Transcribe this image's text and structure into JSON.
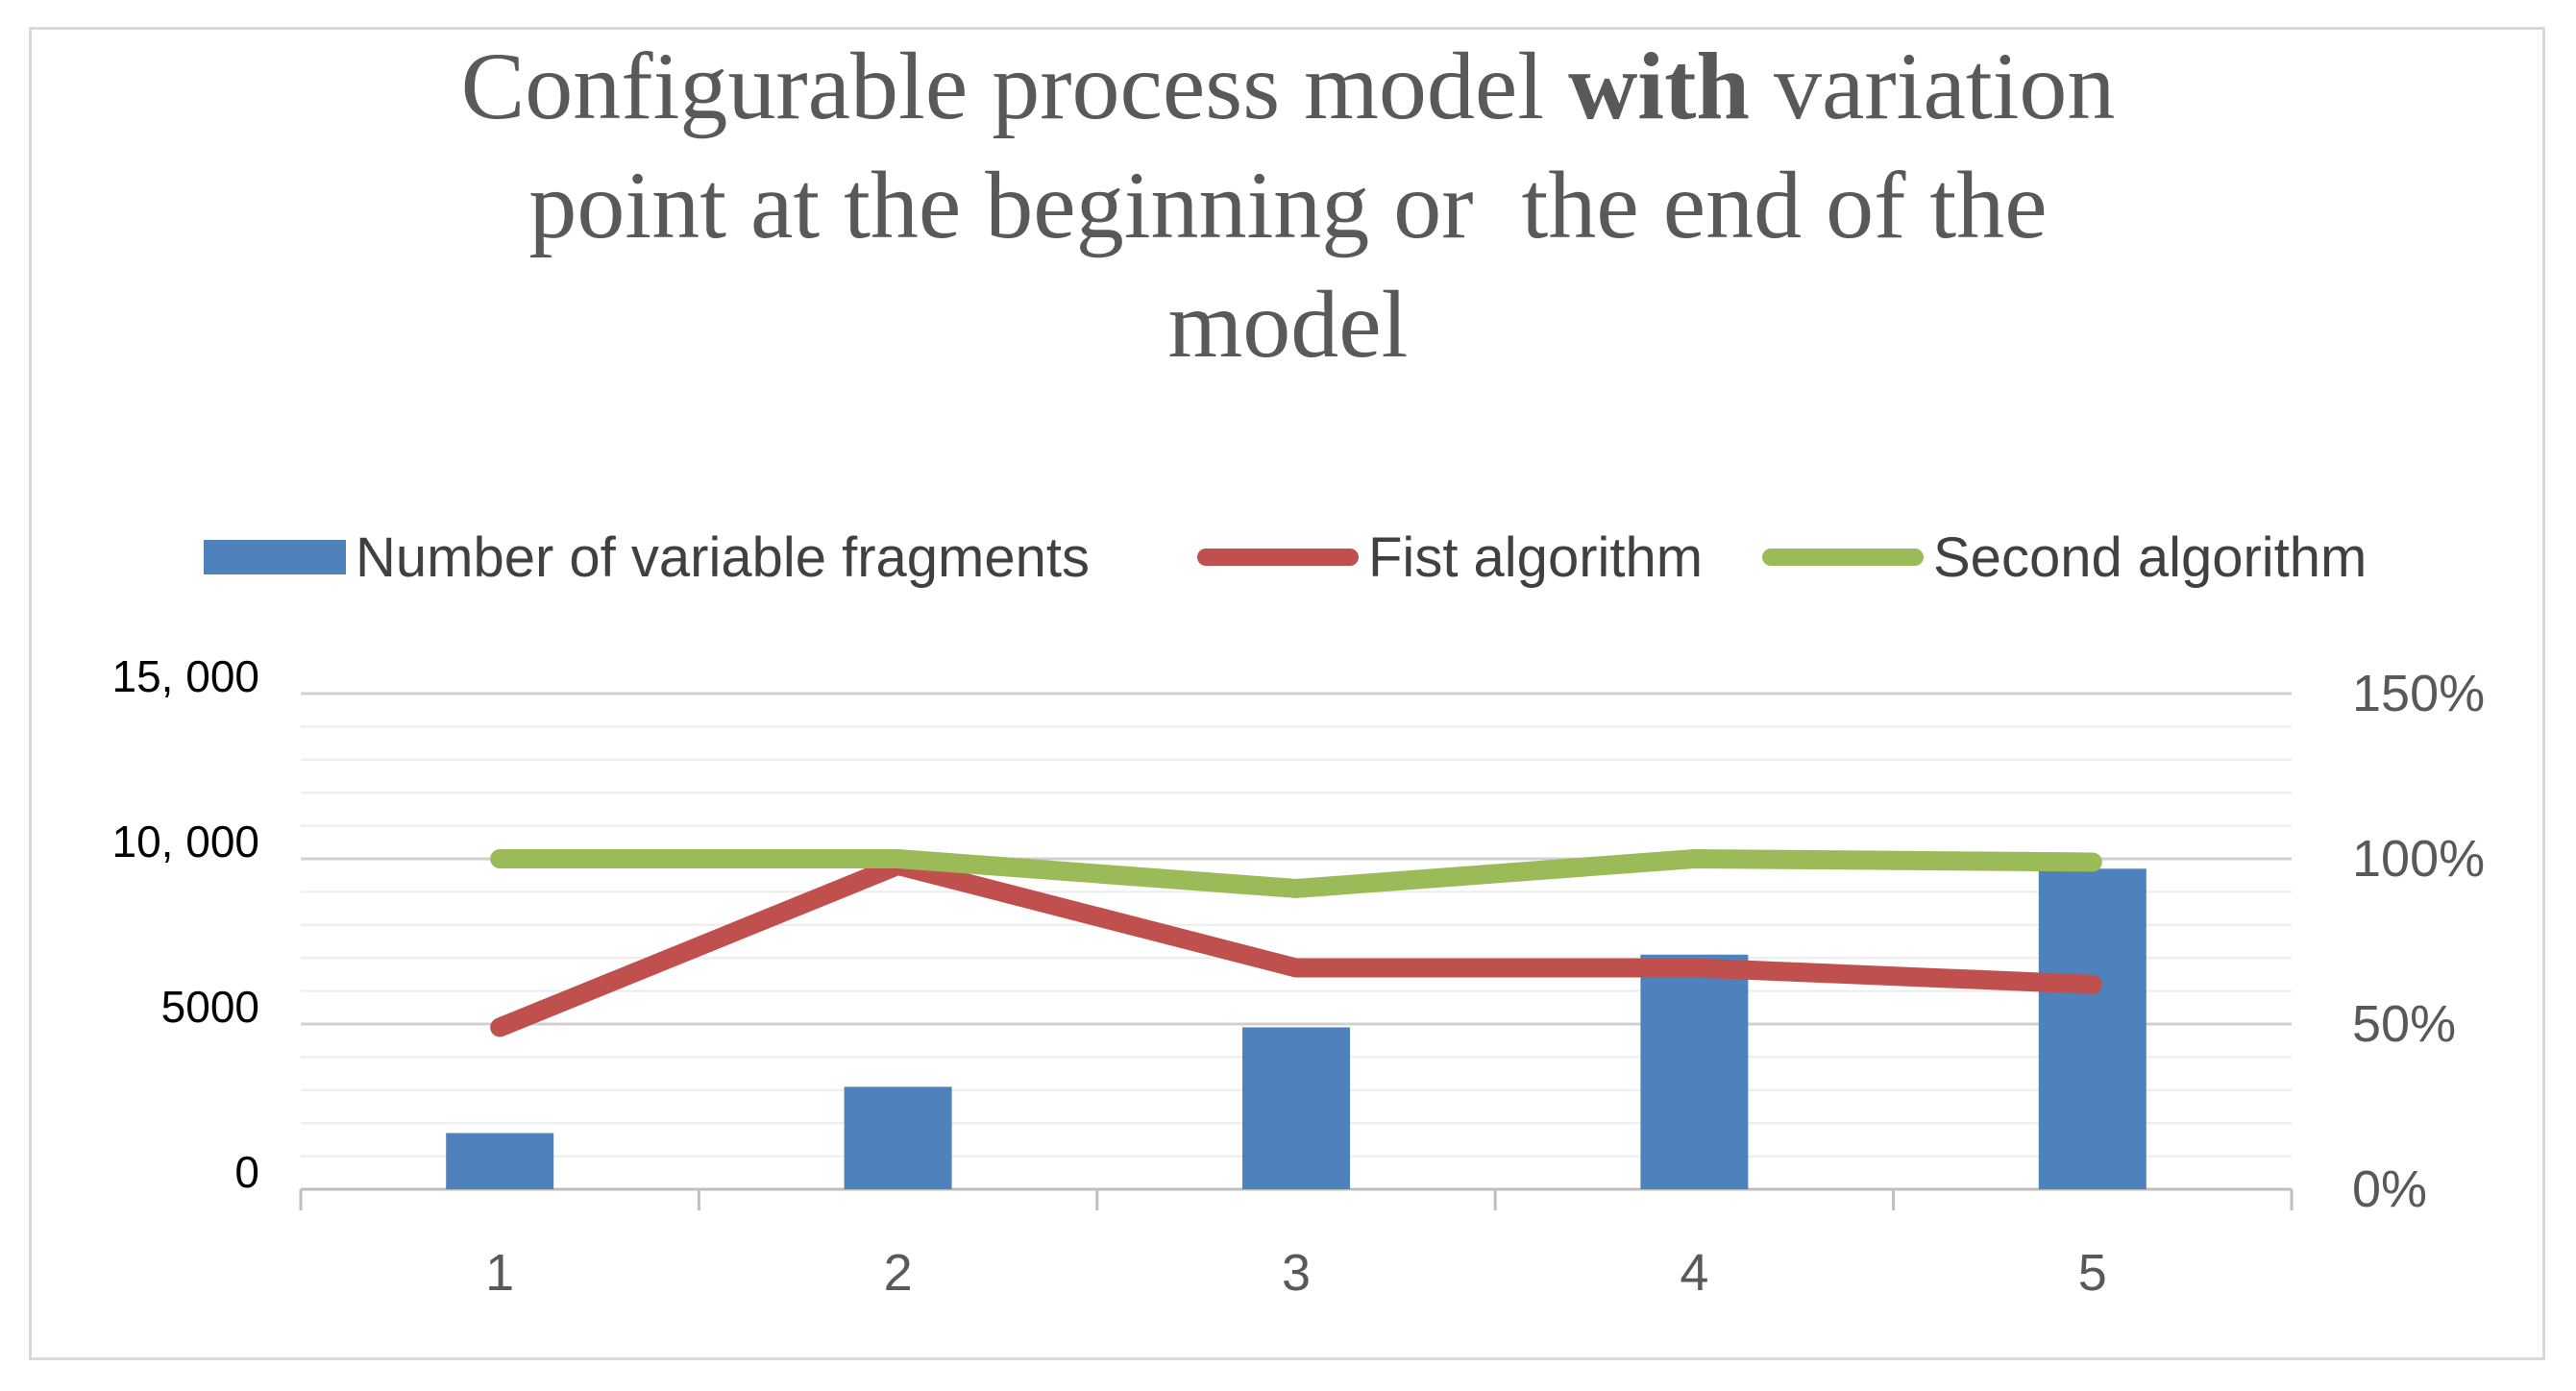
{
  "chart_data": {
    "type": "bar",
    "title_parts": {
      "line1_pre": "Configurable process model ",
      "line1_bold": "with",
      "line1_post": " variation",
      "line2": "point at the beginning or  the end of the",
      "line3": "model"
    },
    "categories": [
      "1",
      "2",
      "3",
      "4",
      "5"
    ],
    "series": [
      {
        "name": "Number of variable fragments",
        "kind": "bar",
        "axis": "left",
        "values": [
          1700,
          3100,
          4900,
          7100,
          9700
        ]
      },
      {
        "name": "Fist algorithm",
        "kind": "line",
        "axis": "right",
        "values": [
          0.49,
          0.98,
          0.67,
          0.67,
          0.62
        ]
      },
      {
        "name": "Second algorithm",
        "kind": "line",
        "axis": "right",
        "values": [
          1.0,
          1.0,
          0.91,
          1.0,
          0.99
        ]
      }
    ],
    "y_left": {
      "range": [
        0,
        15000
      ],
      "ticks": [
        0,
        5000,
        10000,
        15000
      ],
      "tick_labels": [
        "0",
        "5000",
        "10, 000",
        "15, 000"
      ]
    },
    "y_right": {
      "range": [
        0,
        1.5
      ],
      "ticks": [
        0,
        0.5,
        1.0,
        1.5
      ],
      "tick_labels": [
        "0%",
        "50%",
        "100%",
        "150%"
      ]
    },
    "gridlines": true,
    "legend_position": "top",
    "colors": {
      "bars": "#4f81bd",
      "fist": "#c0504d",
      "second": "#9bbb59",
      "grid": "#d9d9d9",
      "text": "#595959"
    }
  }
}
